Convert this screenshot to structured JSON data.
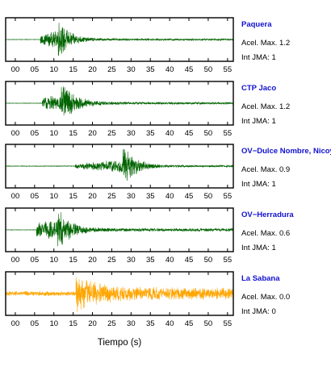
{
  "chart_data": {
    "type": "line",
    "xlabel": "Tiempo (s)",
    "xlim": [
      -2.5,
      56.5
    ],
    "x_ticks": [
      "00",
      "05",
      "10",
      "15",
      "20",
      "25",
      "30",
      "35",
      "40",
      "45",
      "50",
      "55"
    ],
    "series": [
      {
        "name": "Paquera",
        "max_label": "Acel. Max. 1.2",
        "jma_label": "Int JMA: 1",
        "color": "#006400",
        "envelope": {
          "noise": 0.01,
          "onset": 6.5,
          "peak_time": 11.5,
          "rise_amp": 0.25,
          "peak_amp": 0.95,
          "decay": 2.8,
          "tail": 0.05
        }
      },
      {
        "name": "CTP Jaco",
        "max_label": "Acel. Max. 1.2",
        "jma_label": "Int JMA: 1",
        "color": "#006400",
        "envelope": {
          "noise": 0.01,
          "onset": 7.0,
          "peak_time": 12.5,
          "rise_amp": 0.3,
          "peak_amp": 0.95,
          "decay": 3.5,
          "tail": 0.06
        }
      },
      {
        "name": "OV−Dulce Nombre, Nicoya",
        "max_label": "Acel. Max. 0.9",
        "jma_label": "Int JMA: 1",
        "color": "#006400",
        "envelope": {
          "noise": 0.015,
          "onset": 15.5,
          "peak_time": 28.5,
          "rise_amp": 0.12,
          "peak_amp": 0.95,
          "decay": 3.0,
          "tail": 0.05
        }
      },
      {
        "name": "OV−Herradura",
        "max_label": "Acel. Max. 0.6",
        "jma_label": "Int JMA: 1",
        "color": "#006400",
        "envelope": {
          "noise": 0.01,
          "onset": 5.5,
          "peak_time": 11.5,
          "rise_amp": 0.35,
          "peak_amp": 0.95,
          "decay": 3.2,
          "tail": 0.08
        }
      },
      {
        "name": "La Sabana",
        "max_label": "Acel. Max. 0.0",
        "jma_label": "Int JMA: 0",
        "color": "#ffa500",
        "envelope": {
          "noise": 0.12,
          "onset": 15.7,
          "peak_time": 16.2,
          "rise_amp": 0.3,
          "peak_amp": 0.95,
          "decay": 6.0,
          "tail": 0.3
        }
      }
    ]
  }
}
